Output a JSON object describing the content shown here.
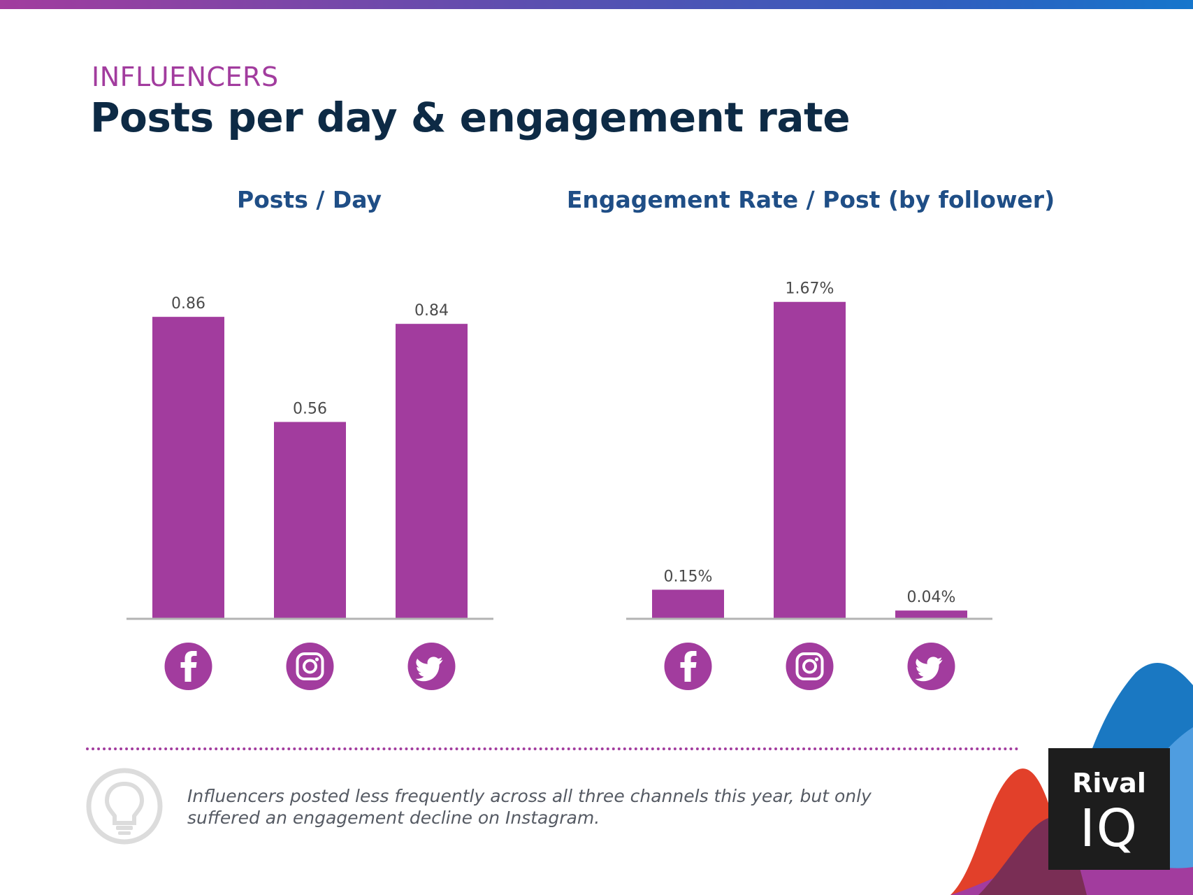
{
  "header": {
    "kicker": "INFLUENCERS",
    "title": "Posts per day & engagement rate"
  },
  "colors": {
    "bar": "#a23c9e",
    "axis": "#b3b3b3",
    "title": "#1f4e86",
    "headline": "#0d2a45"
  },
  "icons": [
    "facebook-icon",
    "instagram-icon",
    "twitter-icon"
  ],
  "chart_data": [
    {
      "type": "bar",
      "title": "Posts / Day",
      "categories": [
        "Facebook",
        "Instagram",
        "Twitter"
      ],
      "values": [
        0.86,
        0.56,
        0.84
      ],
      "labels": [
        "0.86",
        "0.56",
        "0.84"
      ],
      "ylim": [
        0,
        1.0
      ],
      "xlabel": "",
      "ylabel": "",
      "grid": false
    },
    {
      "type": "bar",
      "title": "Engagement Rate / Post (by follower)",
      "categories": [
        "Facebook",
        "Instagram",
        "Twitter"
      ],
      "values": [
        0.15,
        1.67,
        0.04
      ],
      "labels": [
        "0.15%",
        "1.67%",
        "0.04%"
      ],
      "ylim": [
        0,
        1.85
      ],
      "xlabel": "",
      "ylabel": "",
      "grid": false
    }
  ],
  "insight": {
    "text": "Influencers posted less frequently across all three channels this year, but only suffered an engagement decline on Instagram."
  },
  "logo": {
    "line1": "Rival",
    "line2": "IQ"
  }
}
